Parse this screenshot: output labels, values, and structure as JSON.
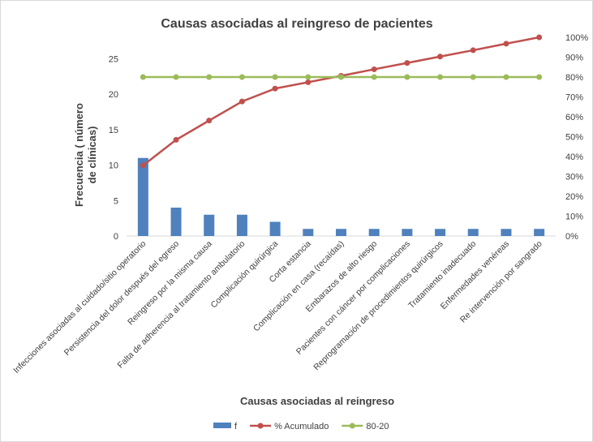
{
  "chart_data": {
    "type": "bar",
    "title": "Causas asociadas al reingreso de pacientes",
    "xlabel": "Causas  asociadas  al reingreso",
    "ylabel": [
      "Frecuencia ( número",
      "de clínicas)"
    ],
    "ylim": [
      0,
      28
    ],
    "yticks": [
      0,
      5,
      10,
      15,
      20,
      25
    ],
    "y2lim": [
      0,
      100
    ],
    "y2ticks": [
      "0%",
      "10%",
      "20%",
      "30%",
      "40%",
      "50%",
      "60%",
      "70%",
      "80%",
      "90%",
      "100%"
    ],
    "grid": false,
    "legend_position": "bottom",
    "categories": [
      "Infecciones asociadas al cuidado/sitio operatorio",
      "Persistencia del dolor después del egreso",
      "Reingreso por la misma causa",
      "Falta de adherencia al tratamiento ambulatorio",
      "Complicación quirúrgica",
      "Corta estancia",
      "Complicación en casa (recaídas)",
      "Embarazos de alto riesgo",
      "Pacientes con cáncer por complicaciones",
      "Reprogramación de procedimientos quirúrgicos",
      "Tratamiento inadecuado",
      "Enfermedades venéreas",
      "Re intervención por sangrado"
    ],
    "series": [
      {
        "name": "f",
        "kind": "bar",
        "axis": "left",
        "color": "#4f81bd",
        "values": [
          11,
          4,
          3,
          3,
          2,
          1,
          1,
          1,
          1,
          1,
          1,
          1,
          1
        ]
      },
      {
        "name": "% Acumulado",
        "kind": "line",
        "axis": "right",
        "color": "#c0504d",
        "values": [
          35.5,
          48.4,
          58.1,
          67.7,
          74.2,
          77.4,
          80.6,
          83.9,
          87.1,
          90.3,
          93.5,
          96.8,
          100
        ]
      },
      {
        "name": "80-20",
        "kind": "line",
        "axis": "right",
        "color": "#9bbb59",
        "values": [
          80,
          80,
          80,
          80,
          80,
          80,
          80,
          80,
          80,
          80,
          80,
          80,
          80
        ]
      }
    ]
  }
}
